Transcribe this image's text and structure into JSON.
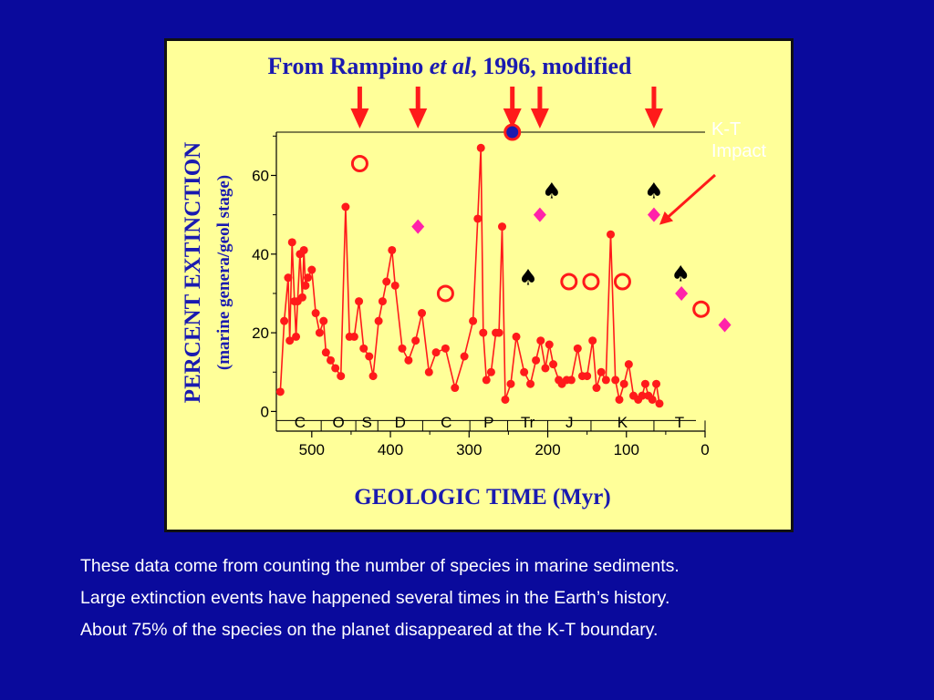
{
  "colors": {
    "background": "#0a0a9c",
    "panel": "#ffff99",
    "title_text": "#1a1ab0",
    "data_line": "#ff1a1a",
    "arrow": "#ff1a1a",
    "diamond": "#ff22aa",
    "spade": "#000000",
    "circle_fill": "#1a1ab0"
  },
  "chart_data": {
    "type": "line",
    "title_parts": [
      "From Rampino ",
      "et al",
      ", 1996, modified"
    ],
    "xlabel": "GEOLOGIC TIME  (Myr)",
    "ylabel": "PERCENT  EXTINCTION",
    "ylabel2": "(marine genera/geol stage)",
    "xlim": [
      545,
      0
    ],
    "ylim": [
      -5,
      71
    ],
    "x_ticks": [
      500,
      400,
      300,
      200,
      100,
      0
    ],
    "y_ticks": [
      0,
      20,
      40,
      60
    ],
    "periods": [
      "C",
      "O",
      "S",
      "D",
      "C",
      "P",
      "Tr",
      "J",
      "K",
      "T"
    ],
    "series": [
      {
        "points": [
          [
            540,
            5
          ],
          [
            535,
            23
          ],
          [
            530,
            34
          ],
          [
            528,
            18
          ],
          [
            525,
            43
          ],
          [
            522,
            28
          ],
          [
            520,
            19
          ],
          [
            518,
            28
          ],
          [
            515,
            40
          ],
          [
            512,
            29
          ],
          [
            510,
            41
          ],
          [
            508,
            32
          ],
          [
            505,
            34
          ],
          [
            500,
            36
          ],
          [
            495,
            25
          ],
          [
            490,
            20
          ],
          [
            485,
            23
          ],
          [
            482,
            15
          ],
          [
            476,
            13
          ],
          [
            470,
            11
          ],
          [
            463,
            9
          ],
          [
            457,
            52
          ],
          [
            452,
            19
          ],
          [
            446,
            19
          ],
          [
            440,
            28
          ],
          [
            434,
            16
          ],
          [
            427,
            14
          ],
          [
            422,
            9
          ],
          [
            415,
            23
          ],
          [
            410,
            28
          ],
          [
            405,
            33
          ],
          [
            398,
            41
          ],
          [
            394,
            32
          ],
          [
            385,
            16
          ],
          [
            377,
            13
          ],
          [
            368,
            18
          ],
          [
            360,
            25
          ],
          [
            351,
            10
          ],
          [
            342,
            15
          ],
          [
            330,
            16
          ],
          [
            318,
            6
          ],
          [
            306,
            14
          ],
          [
            295,
            23
          ],
          [
            289,
            49
          ],
          [
            285,
            67
          ],
          [
            282,
            20
          ],
          [
            278,
            8
          ],
          [
            272,
            10
          ],
          [
            266,
            20
          ],
          [
            262,
            20
          ],
          [
            258,
            47
          ],
          [
            254,
            3
          ],
          [
            247,
            7
          ],
          [
            240,
            19
          ],
          [
            230,
            10
          ],
          [
            222,
            7
          ],
          [
            215,
            13
          ],
          [
            209,
            18
          ],
          [
            203,
            11
          ],
          [
            198,
            17
          ],
          [
            193,
            12
          ],
          [
            186,
            8
          ],
          [
            182,
            7
          ],
          [
            176,
            8
          ],
          [
            170,
            8
          ],
          [
            162,
            16
          ],
          [
            156,
            9
          ],
          [
            150,
            9
          ],
          [
            143,
            18
          ],
          [
            138,
            6
          ],
          [
            132,
            10
          ],
          [
            126,
            8
          ],
          [
            120,
            45
          ],
          [
            114,
            8
          ],
          [
            109,
            3
          ],
          [
            103,
            7
          ],
          [
            97,
            12
          ],
          [
            91,
            4
          ],
          [
            85,
            3
          ],
          [
            80,
            4
          ],
          [
            76,
            7
          ],
          [
            72,
            4
          ],
          [
            67,
            3
          ],
          [
            62,
            7
          ],
          [
            58,
            2
          ]
        ]
      }
    ],
    "extinction_arrows_myr": [
      439,
      365,
      245,
      210,
      65
    ],
    "markers": {
      "open_circles": [
        [
          439,
          63
        ],
        [
          330,
          30
        ],
        [
          173,
          33
        ],
        [
          145,
          33
        ],
        [
          105,
          33
        ],
        [
          5,
          26
        ]
      ],
      "diamonds": [
        [
          365,
          47
        ],
        [
          210,
          50
        ],
        [
          65,
          50
        ],
        [
          30,
          30
        ],
        [
          -25,
          22
        ]
      ],
      "spades": [
        [
          195,
          56
        ],
        [
          225,
          34
        ],
        [
          65,
          56
        ],
        [
          31,
          35
        ]
      ],
      "filled_circle": [
        [
          245,
          71
        ]
      ]
    }
  },
  "annotation": {
    "line1": "K-T",
    "line2": "Impact"
  },
  "caption": {
    "line1": "These data come from counting the number of species in marine sediments.",
    "line2": "Large extinction events have happened several times in the Earth’s history.",
    "line3": "About 75% of the species on the planet disappeared at the K-T boundary."
  }
}
